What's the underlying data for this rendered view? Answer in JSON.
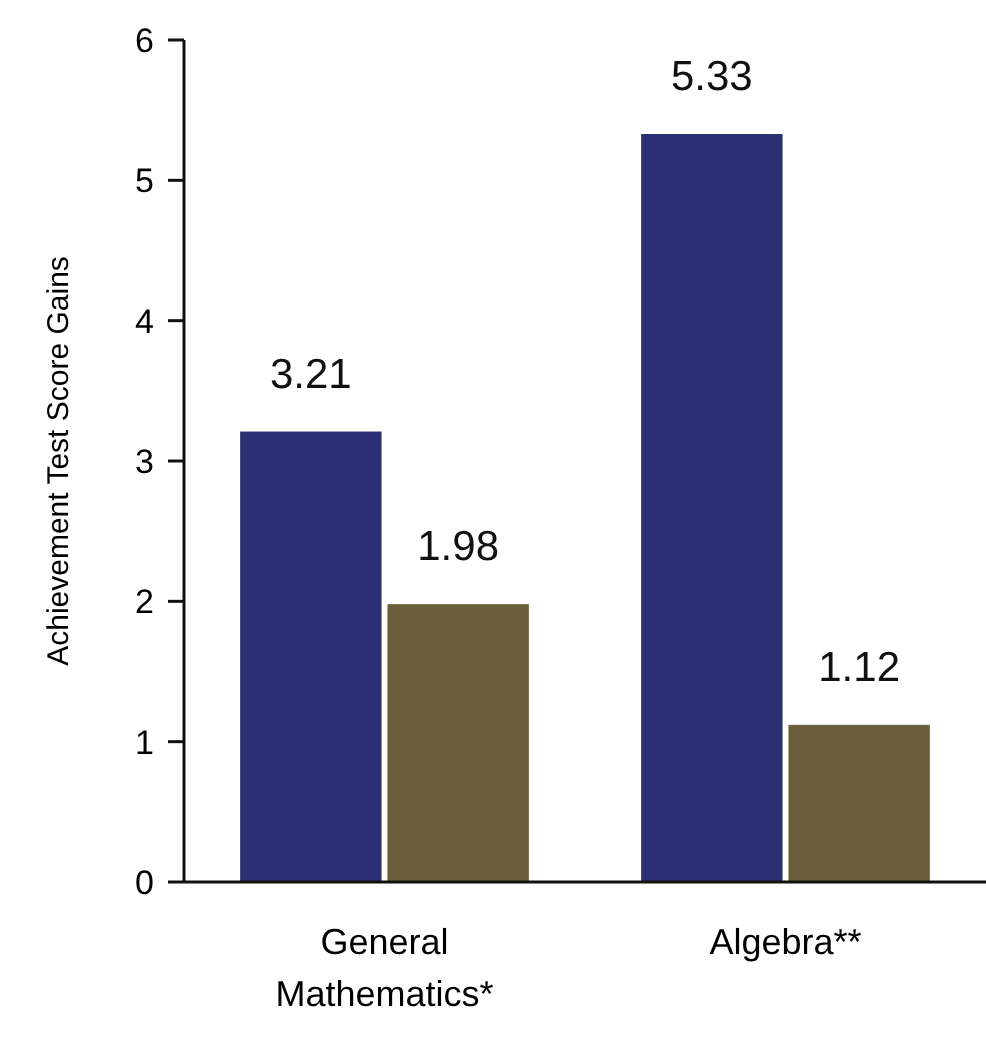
{
  "chart_data": {
    "type": "bar",
    "ylabel": "Achievement Test Score Gains",
    "categories": [
      "General Mathematics*",
      "Algebra**"
    ],
    "series": [
      {
        "color": "#2b2f73",
        "values": [
          3.21,
          5.33
        ]
      },
      {
        "color": "#6b5f3b",
        "values": [
          1.98,
          1.12
        ]
      }
    ],
    "ylim": [
      0,
      6
    ],
    "yticks": [
      0,
      1,
      2,
      3,
      4,
      5,
      6
    ],
    "data_labels": true
  }
}
